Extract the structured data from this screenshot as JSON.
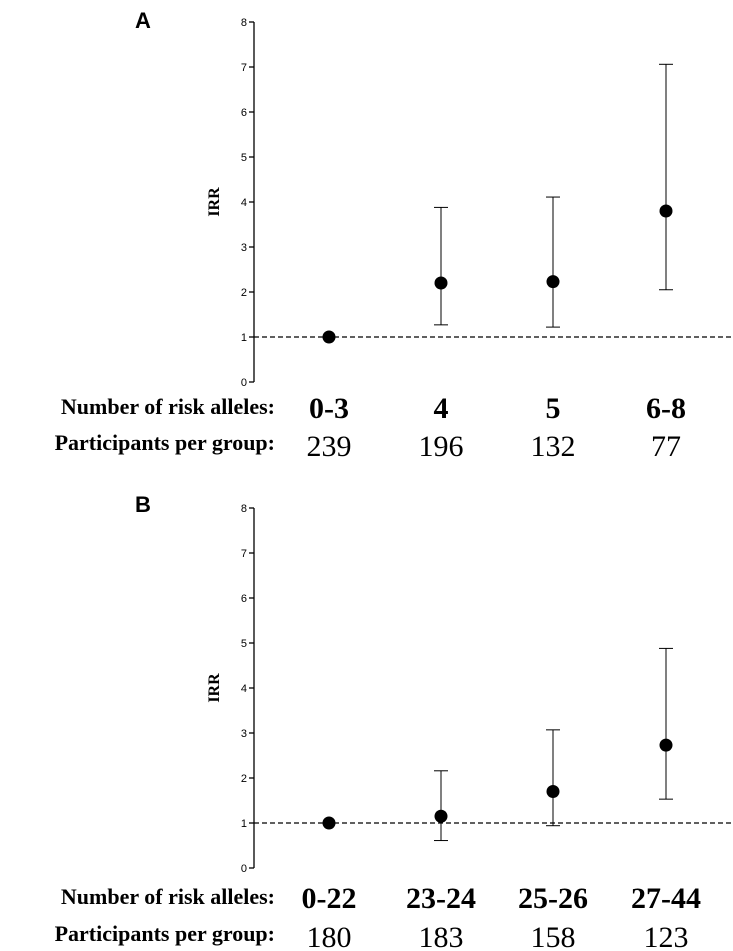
{
  "chart_data": [
    {
      "type": "scatter",
      "panel_label": "A",
      "ylabel": "IRR",
      "ylim": [
        0,
        8
      ],
      "yticks": [
        "0",
        "1",
        "2",
        "3",
        "4",
        "5",
        "6",
        "7",
        "8"
      ],
      "reference_line": 1,
      "row_labels": {
        "categories": "Number of risk alleles:",
        "counts": "Participants per group:"
      },
      "categories": [
        "0-3",
        "4",
        "5",
        "6-8"
      ],
      "participants": [
        "239",
        "196",
        "132",
        "77"
      ],
      "points": [
        {
          "category": "0-3",
          "irr": 1.0,
          "ci_low": 1.0,
          "ci_high": 1.0
        },
        {
          "category": "4",
          "irr": 2.2,
          "ci_low": 1.27,
          "ci_high": 3.88
        },
        {
          "category": "5",
          "irr": 2.23,
          "ci_low": 1.22,
          "ci_high": 4.11
        },
        {
          "category": "6-8",
          "irr": 3.8,
          "ci_low": 2.05,
          "ci_high": 7.06
        }
      ]
    },
    {
      "type": "scatter",
      "panel_label": "B",
      "ylabel": "IRR",
      "ylim": [
        0,
        8
      ],
      "yticks": [
        "0",
        "1",
        "2",
        "3",
        "4",
        "5",
        "6",
        "7",
        "8"
      ],
      "reference_line": 1,
      "row_labels": {
        "categories": "Number of risk alleles:",
        "counts": "Participants per group:"
      },
      "categories": [
        "0-22",
        "23-24",
        "25-26",
        "27-44"
      ],
      "participants": [
        "180",
        "183",
        "158",
        "123"
      ],
      "points": [
        {
          "category": "0-22",
          "irr": 1.0,
          "ci_low": 1.0,
          "ci_high": 1.0
        },
        {
          "category": "23-24",
          "irr": 1.15,
          "ci_low": 0.61,
          "ci_high": 2.16
        },
        {
          "category": "25-26",
          "irr": 1.7,
          "ci_low": 0.94,
          "ci_high": 3.07
        },
        {
          "category": "27-44",
          "irr": 2.73,
          "ci_low": 1.53,
          "ci_high": 4.88
        }
      ]
    }
  ]
}
